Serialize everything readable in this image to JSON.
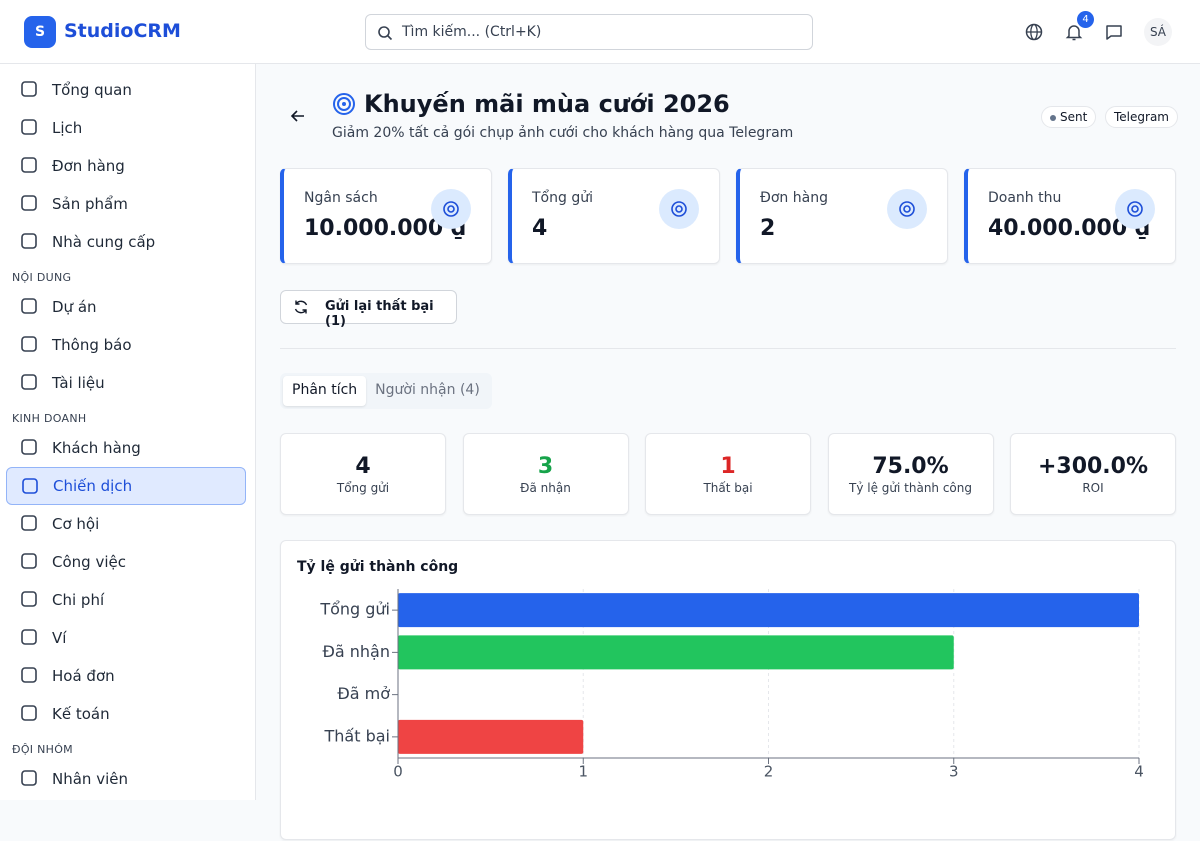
{
  "header": {
    "logo_letter": "S",
    "app_name": "StudioCRM",
    "search_placeholder": "Tìm kiếm... (Ctrl+K)",
    "notification_count": 4,
    "avatar": "SÁ"
  },
  "sidebar": {
    "items": [
      {
        "label": "Tổng quan"
      },
      {
        "label": "Lịch"
      },
      {
        "label": "Đơn hàng"
      },
      {
        "label": "Sản phẩm"
      },
      {
        "label": "Nhà cung cấp"
      }
    ],
    "sections": [
      {
        "title": "NỘI DUNG",
        "items": [
          {
            "label": "Dự án"
          },
          {
            "label": "Thông báo"
          },
          {
            "label": "Tài liệu"
          }
        ]
      },
      {
        "title": "KINH DOANH",
        "items": [
          {
            "label": "Khách hàng"
          },
          {
            "label": "Chiến dịch",
            "active": true
          },
          {
            "label": "Cơ hội"
          },
          {
            "label": "Công việc"
          },
          {
            "label": "Chi phí"
          },
          {
            "label": "Ví"
          },
          {
            "label": "Hoá đơn"
          },
          {
            "label": "Kế toán"
          }
        ]
      },
      {
        "title": "ĐỘI NHÓM",
        "items": [
          {
            "label": "Nhân viên"
          }
        ]
      }
    ]
  },
  "page": {
    "title": "Khuyến mãi mùa cưới 2026",
    "subtitle": "Giảm 20% tất cả gói chụp ảnh cưới cho khách hàng qua Telegram",
    "status": "Sent",
    "channel": "Telegram"
  },
  "stat_cards": [
    {
      "label": "Ngân sách",
      "value": "10.000.000 ₫"
    },
    {
      "label": "Tổng gửi",
      "value": "4"
    },
    {
      "label": "Đơn hàng",
      "value": "2"
    },
    {
      "label": "Doanh thu",
      "value": "40.000.000 ₫"
    }
  ],
  "retry_button": "Gửi lại thất bại (1)",
  "tabs": [
    {
      "label": "Phân tích",
      "active": true
    },
    {
      "label": "Người nhận (4)"
    }
  ],
  "metrics": [
    {
      "value": "4",
      "label": "Tổng gửi",
      "color": "#111827"
    },
    {
      "value": "3",
      "label": "Đã nhận",
      "color": "#16a34a"
    },
    {
      "value": "1",
      "label": "Thất bại",
      "color": "#dc2626"
    },
    {
      "value": "75.0%",
      "label": "Tỷ lệ gửi thành công",
      "color": "#111827"
    },
    {
      "value": "+300.0%",
      "label": "ROI",
      "color": "#111827"
    }
  ],
  "chart_data": {
    "type": "bar",
    "orientation": "horizontal",
    "title": "Tỷ lệ gửi thành công",
    "categories": [
      "Tổng gửi",
      "Đã nhận",
      "Đã mở",
      "Thất bại"
    ],
    "values": [
      4,
      3,
      0,
      1
    ],
    "colors": [
      "#2563eb",
      "#22c55e",
      "#f59e0b",
      "#ef4444"
    ],
    "xlim": [
      0,
      4
    ],
    "xticks": [
      0,
      1,
      2,
      3,
      4
    ],
    "grid": true
  }
}
